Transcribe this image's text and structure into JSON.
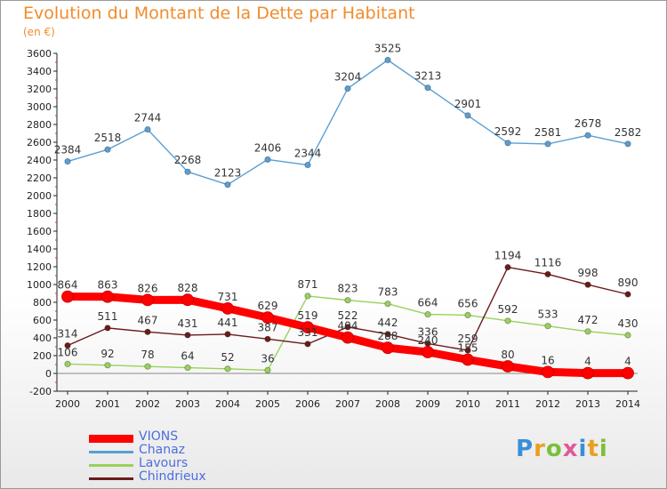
{
  "header": {
    "title": "Evolution du Montant de la Dette par Habitant",
    "subtitle": "(en €)"
  },
  "logo": {
    "text": "Proxiti"
  },
  "colors": {
    "title": "#f08c2c",
    "VIONS": "#ff0000",
    "Chanaz": "#5a9fd4",
    "Lavours": "#9ad15a",
    "Chindrieux": "#6b1b1b"
  },
  "chart_data": {
    "type": "line",
    "title": "Evolution du Montant de la Dette par Habitant",
    "subtitle": "(en €)",
    "xlabel": "",
    "ylabel": "",
    "x": [
      "2000",
      "2001",
      "2002",
      "2003",
      "2004",
      "2005",
      "2006",
      "2007",
      "2008",
      "2009",
      "2010",
      "2011",
      "2012",
      "2013",
      "2014"
    ],
    "ylim": [
      -200,
      3600
    ],
    "yticks": [
      -200,
      0,
      200,
      400,
      600,
      800,
      1000,
      1200,
      1400,
      1600,
      1800,
      2000,
      2200,
      2400,
      2600,
      2800,
      3000,
      3200,
      3400,
      3600
    ],
    "legend_position": "bottom-left",
    "grid": false,
    "series": [
      {
        "name": "VIONS",
        "color": "#ff0000",
        "values": [
          864,
          863,
          826,
          828,
          731,
          629,
          519,
          404,
          288,
          240,
          155,
          80,
          16,
          4,
          4
        ],
        "labels": [
          "864",
          "863",
          "826",
          "828",
          "731",
          "629",
          "519",
          "404",
          "288",
          "240",
          "155",
          "80",
          "16",
          "4",
          "4"
        ]
      },
      {
        "name": "Chanaz",
        "color": "#5a9fd4",
        "values": [
          2384,
          2518,
          2744,
          2268,
          2123,
          2406,
          2344,
          3204,
          3525,
          3213,
          2901,
          2592,
          2581,
          2678,
          2582
        ],
        "labels": [
          "2384",
          "2518",
          "2744",
          "2268",
          "2123",
          "2406",
          "2344",
          "3204",
          "3525",
          "3213",
          "2901",
          "2592",
          "2581",
          "2678",
          "2582"
        ]
      },
      {
        "name": "Lavours",
        "color": "#9ad15a",
        "values": [
          106,
          92,
          78,
          64,
          52,
          36,
          871,
          823,
          783,
          664,
          656,
          592,
          533,
          472,
          430
        ],
        "labels": [
          "106",
          "92",
          "78",
          "64",
          "52",
          "36",
          "871",
          "823",
          "783",
          "664",
          "656",
          "592",
          "533",
          "472",
          "430"
        ]
      },
      {
        "name": "Chindrieux",
        "color": "#6b1b1b",
        "values": [
          314,
          511,
          467,
          431,
          441,
          387,
          331,
          522,
          442,
          336,
          259,
          1194,
          1116,
          998,
          890
        ],
        "labels": [
          "314",
          "511",
          "467",
          "431",
          "441",
          "387",
          "331",
          "522",
          "442",
          "336",
          "259",
          "1194",
          "1116",
          "998",
          "890"
        ]
      }
    ]
  }
}
